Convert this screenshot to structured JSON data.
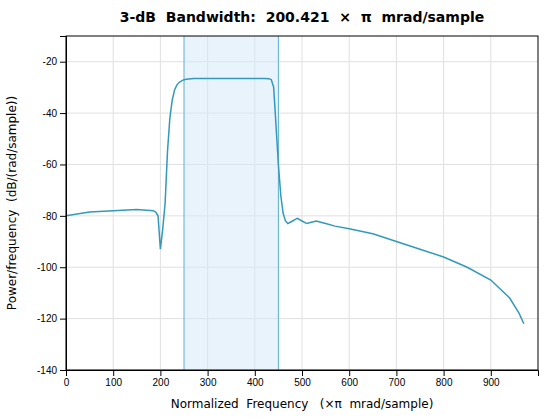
{
  "chart_data": {
    "type": "line",
    "title": "3-dB  Bandwidth:  200.421  ×  π  mrad/sample",
    "x_label": "Normalized  Frequency   (×π  mrad/sample)",
    "y_label": "Power/frequency  (dB/(rad/sample))",
    "x": [
      0,
      50,
      100,
      150,
      185,
      190,
      195,
      200,
      205,
      210,
      215,
      220,
      225,
      230,
      235,
      240,
      245,
      250,
      255,
      260,
      265,
      270,
      275,
      280,
      300,
      350,
      380,
      420,
      430,
      435,
      440,
      445,
      450,
      455,
      460,
      465,
      470,
      475,
      480,
      485,
      490,
      500,
      510,
      520,
      530,
      540,
      550,
      570,
      600,
      650,
      700,
      750,
      800,
      850,
      900,
      940,
      960,
      970
    ],
    "series": [
      {
        "color": "#3399bb",
        "values": [
          -80,
          -78.5,
          -78,
          -77.5,
          -78,
          -78.5,
          -80,
          -93,
          -85,
          -75,
          -55,
          -42,
          -35,
          -31,
          -29,
          -28,
          -27.5,
          -27,
          -26.8,
          -26.7,
          -26.6,
          -26.5,
          -26.5,
          -26.5,
          -26.5,
          -26.5,
          -26.5,
          -26.5,
          -26.6,
          -27,
          -30,
          -45,
          -60,
          -72,
          -79,
          -82,
          -83,
          -82.5,
          -82,
          -81.5,
          -81,
          -82,
          -83,
          -82.5,
          -82,
          -82.5,
          -83,
          -84,
          -85,
          -87,
          -90,
          -93,
          -96,
          -100,
          -105,
          -112,
          -118,
          -122
        ]
      }
    ],
    "band": {
      "x": [
        250,
        450
      ],
      "color": "#d6eaf8"
    },
    "vlines": {
      "x": [
        250,
        450
      ],
      "color": "#5ab0cc"
    },
    "xlim": [
      0,
      1000
    ],
    "ylim": [
      -140,
      -10
    ],
    "xticks": [
      0,
      100,
      200,
      300,
      400,
      500,
      600,
      700,
      800,
      900
    ],
    "yticks": [
      -20,
      -40,
      -60,
      -80,
      -100,
      -120,
      -140
    ],
    "grid": true
  }
}
